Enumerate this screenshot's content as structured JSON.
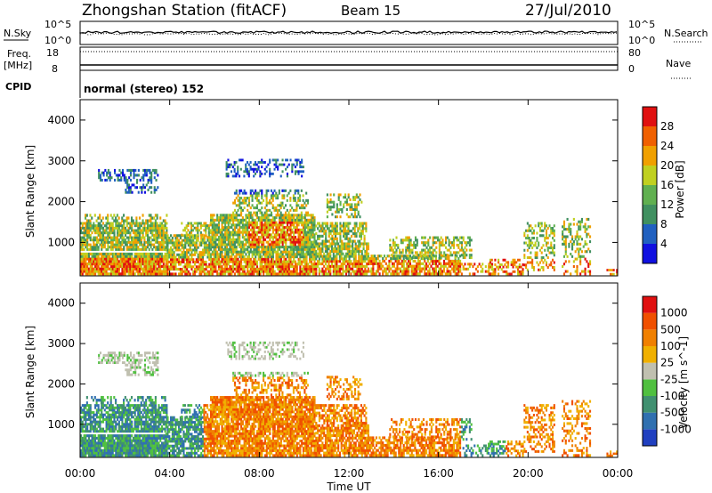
{
  "header": {
    "station": "Zhongshan Station (fitACF)",
    "beam": "Beam 15",
    "date": "27/Jul/2010"
  },
  "status": {
    "nsky_label": "N.Sky",
    "nsearch_label": "N.Search",
    "freq_label": "Freq.",
    "freq_unit": "[MHz]",
    "nave_label": "Nave",
    "cpid_label": "CPID",
    "cpid_value": "normal (stereo) 152",
    "nsky_ticks": [
      "10^5",
      "10^0"
    ],
    "nsearch_ticks": [
      "10^5",
      "10^0"
    ],
    "freq_ticks": [
      "18",
      "8"
    ],
    "nave_ticks": [
      "80",
      "0"
    ]
  },
  "chart_data": [
    {
      "type": "heatmap",
      "title": "",
      "xlabel": "",
      "ylabel": "Slant Range [km]",
      "x_range_hours": [
        0,
        24
      ],
      "ylim": [
        180,
        4500
      ],
      "yticks": [
        "1000",
        "2000",
        "3000",
        "4000"
      ],
      "colorbar": {
        "label": "Power [dB]",
        "ticks": [
          "4",
          "8",
          "12",
          "16",
          "20",
          "24",
          "28"
        ],
        "colors": [
          "#1010e0",
          "#2060c0",
          "#409060",
          "#60b050",
          "#c0d020",
          "#f0a000",
          "#f06000",
          "#e01010"
        ]
      }
    },
    {
      "type": "heatmap",
      "title": "",
      "xlabel": "Time UT",
      "ylabel": "Slant Range [km]",
      "x_range_hours": [
        0,
        24
      ],
      "ylim": [
        180,
        4500
      ],
      "yticks": [
        "1000",
        "2000",
        "3000",
        "4000"
      ],
      "xticks": [
        "00:00",
        "04:00",
        "08:00",
        "12:00",
        "16:00",
        "20:00",
        "00:00"
      ],
      "colorbar": {
        "label": "Velocity [m s^-1]",
        "ticks": [
          "1000",
          "500",
          "100",
          "25",
          "-25",
          "-100",
          "-500",
          "-1000"
        ],
        "colors": [
          "#2040c0",
          "#3070b0",
          "#409070",
          "#50c040",
          "#c0c0b0",
          "#f0b000",
          "#f08000",
          "#f05000",
          "#e01010"
        ]
      }
    }
  ]
}
